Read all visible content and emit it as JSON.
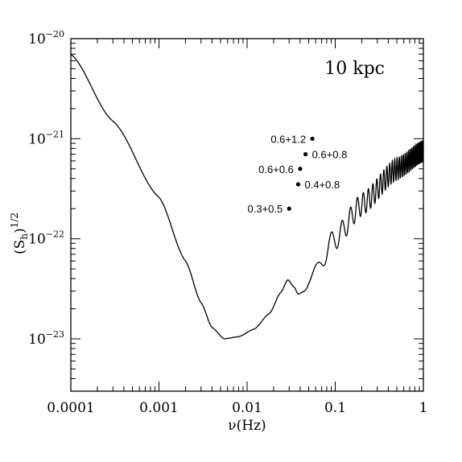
{
  "chart_data": {
    "type": "line",
    "xscale": "log",
    "yscale": "log",
    "xlim": [
      0.0001,
      1
    ],
    "ylim": [
      3e-24,
      1e-20
    ],
    "xlabel": "ν(Hz)",
    "ylabel": "(Sh)1/2",
    "ylabel_parts": {
      "base": "(S",
      "sub": "h",
      "close": ")",
      "sup": "1/2"
    },
    "xtick_values": [
      0.0001,
      0.001,
      0.01,
      0.1,
      1
    ],
    "xtick_labels": [
      "0.0001",
      "0.001",
      "0.01",
      "0.1",
      "1"
    ],
    "ytick_values": [
      1e-23,
      1e-22,
      1e-21,
      1e-20
    ],
    "ytick_labels": [
      {
        "base": "10",
        "exp": "−23"
      },
      {
        "base": "10",
        "exp": "−22"
      },
      {
        "base": "10",
        "exp": "−21"
      },
      {
        "base": "10",
        "exp": "−20"
      }
    ],
    "annotation": "10 kpc",
    "grid": false,
    "curve": {
      "description_points": [
        [
          0.0001,
          7e-21
        ],
        [
          0.0003,
          1.5e-21
        ],
        [
          0.001,
          2.6e-22
        ],
        [
          0.002,
          6e-23
        ],
        [
          0.003,
          2.3e-23
        ],
        [
          0.004,
          1.3e-23
        ],
        [
          0.0055,
          1e-23
        ],
        [
          0.008,
          1.05e-23
        ],
        [
          0.012,
          1.25e-23
        ],
        [
          0.018,
          1.8e-23
        ],
        [
          0.024,
          2.9e-23
        ],
        [
          0.029,
          3.9e-23
        ],
        [
          0.034,
          3.3e-23
        ],
        [
          0.038,
          2.8e-23
        ],
        [
          0.045,
          3e-23
        ],
        [
          0.06,
          5e-23
        ],
        [
          0.1,
          1e-22
        ],
        [
          0.2,
          2.2e-22
        ],
        [
          0.5,
          5e-22
        ],
        [
          1.0,
          7.5e-22
        ]
      ]
    },
    "points": [
      {
        "label": "0.6+1.2",
        "x": 0.055,
        "y": 1e-21,
        "label_side": "left"
      },
      {
        "label": "0.6+0.8",
        "x": 0.046,
        "y": 7e-22,
        "label_side": "right"
      },
      {
        "label": "0.6+0.6",
        "x": 0.04,
        "y": 5e-22,
        "label_side": "left"
      },
      {
        "label": "0.4+0.8",
        "x": 0.038,
        "y": 3.5e-22,
        "label_side": "right"
      },
      {
        "label": "0.3+0.5",
        "x": 0.03,
        "y": 2e-22,
        "label_side": "left"
      }
    ]
  }
}
